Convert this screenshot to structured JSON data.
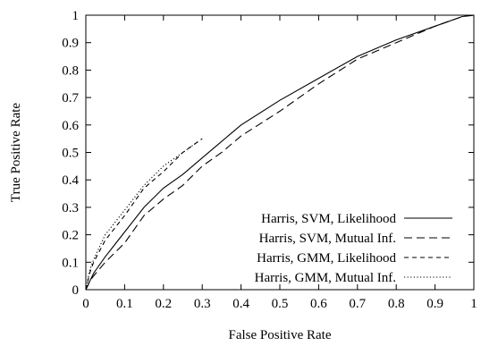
{
  "chart_data": {
    "type": "line",
    "title": "",
    "xlabel": "False Positive Rate",
    "ylabel": "True Positive Rate",
    "xlim": [
      0,
      1
    ],
    "ylim": [
      0,
      1
    ],
    "xticks": [
      "0",
      "0.1",
      "0.2",
      "0.3",
      "0.4",
      "0.5",
      "0.6",
      "0.7",
      "0.8",
      "0.9",
      "1"
    ],
    "yticks": [
      "0",
      "0.1",
      "0.2",
      "0.3",
      "0.4",
      "0.5",
      "0.6",
      "0.7",
      "0.8",
      "0.9",
      "1"
    ],
    "grid": false,
    "legend_position": "bottom-right",
    "series": [
      {
        "name": "Harris, SVM, Likelihood",
        "dash": "solid",
        "x": [
          0,
          0.01,
          0.02,
          0.05,
          0.1,
          0.15,
          0.2,
          0.25,
          0.3,
          0.35,
          0.4,
          0.5,
          0.6,
          0.7,
          0.8,
          0.9,
          0.95,
          0.97,
          1.0
        ],
        "y": [
          0,
          0.03,
          0.06,
          0.12,
          0.21,
          0.3,
          0.37,
          0.42,
          0.48,
          0.54,
          0.6,
          0.69,
          0.77,
          0.85,
          0.91,
          0.96,
          0.985,
          0.995,
          1.0
        ]
      },
      {
        "name": "Harris, SVM, Mutual Inf.",
        "dash": "long-dash",
        "x": [
          0,
          0.01,
          0.02,
          0.05,
          0.1,
          0.15,
          0.2,
          0.25,
          0.3,
          0.35,
          0.4,
          0.5,
          0.6,
          0.7,
          0.8,
          0.9,
          0.95,
          0.97,
          1.0
        ],
        "y": [
          0,
          0.03,
          0.05,
          0.1,
          0.17,
          0.27,
          0.33,
          0.38,
          0.45,
          0.5,
          0.56,
          0.65,
          0.75,
          0.84,
          0.9,
          0.96,
          0.985,
          0.995,
          1.0
        ]
      },
      {
        "name": "Harris, GMM, Likelihood",
        "dash": "short-dash",
        "x": [
          0,
          0.01,
          0.02,
          0.05,
          0.1,
          0.15,
          0.2,
          0.25,
          0.3
        ],
        "y": [
          0,
          0.06,
          0.1,
          0.18,
          0.27,
          0.37,
          0.43,
          0.5,
          0.55
        ]
      },
      {
        "name": "Harris, GMM, Mutual Inf.",
        "dash": "dotted",
        "x": [
          0,
          0.01,
          0.02,
          0.05,
          0.1,
          0.15,
          0.2,
          0.25,
          0.29
        ],
        "y": [
          0,
          0.07,
          0.11,
          0.2,
          0.29,
          0.38,
          0.45,
          0.5,
          0.54
        ]
      }
    ]
  }
}
